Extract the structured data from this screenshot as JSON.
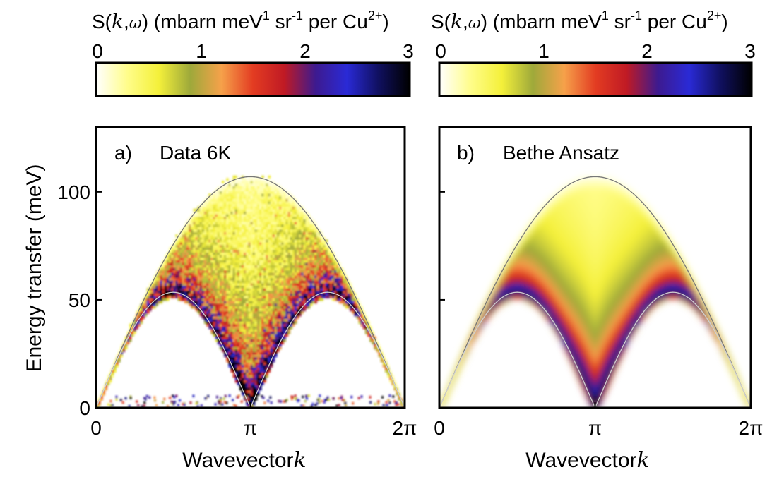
{
  "chart_data": [
    {
      "panel": "a)",
      "type": "heatmap",
      "title": "Data 6K",
      "colorbar": {
        "label_prefix": "S(",
        "label_k": "k",
        "label_comma": ",",
        "label_omega": "ω",
        "label_mid": ") (mbarn meV",
        "sup1": "1",
        "label_sr": " sr",
        "sup2": "-1",
        "label_per": " per Cu",
        "sup3": "2+",
        "label_close": ")",
        "range": [
          0,
          3
        ],
        "ticks": [
          "0",
          "1",
          "2",
          "3"
        ],
        "colormap": [
          "#ffffff",
          "#fffd8a",
          "#f4f03a",
          "#9ea93a",
          "#f6a14a",
          "#e33c22",
          "#c01a24",
          "#3d1a8f",
          "#2a2ad6",
          "#101060",
          "#000000"
        ]
      },
      "xlabel": "Wavevector",
      "xlabel_symbol": "k",
      "ylabel": "Energy transfer (meV)",
      "x_ticks": [
        "0",
        "π",
        "2π"
      ],
      "y_ticks": [
        0,
        50,
        100
      ],
      "xlim": [
        0,
        6.2832
      ],
      "ylim": [
        0,
        130
      ],
      "des_cloizeaux_pearson_lower_peak_meV": 53.5,
      "two_spinon_upper_peak_meV": 107
    },
    {
      "panel": "b)",
      "type": "heatmap",
      "title": "Bethe Ansatz",
      "colorbar": {
        "label_prefix": "S(",
        "label_k": "k",
        "label_comma": ",",
        "label_omega": "ω",
        "label_mid": ") (mbarn meV",
        "sup1": "1",
        "label_sr": " sr",
        "sup2": "-1",
        "label_per": " per Cu",
        "sup3": "2+",
        "label_close": ")",
        "range": [
          0,
          3
        ],
        "ticks": [
          "0",
          "1",
          "2",
          "3"
        ]
      },
      "xlabel": "Wavevector",
      "xlabel_symbol": "k",
      "x_ticks": [
        "0",
        "π",
        "2π"
      ],
      "xlim": [
        0,
        6.2832
      ],
      "ylim": [
        0,
        130
      ]
    }
  ]
}
